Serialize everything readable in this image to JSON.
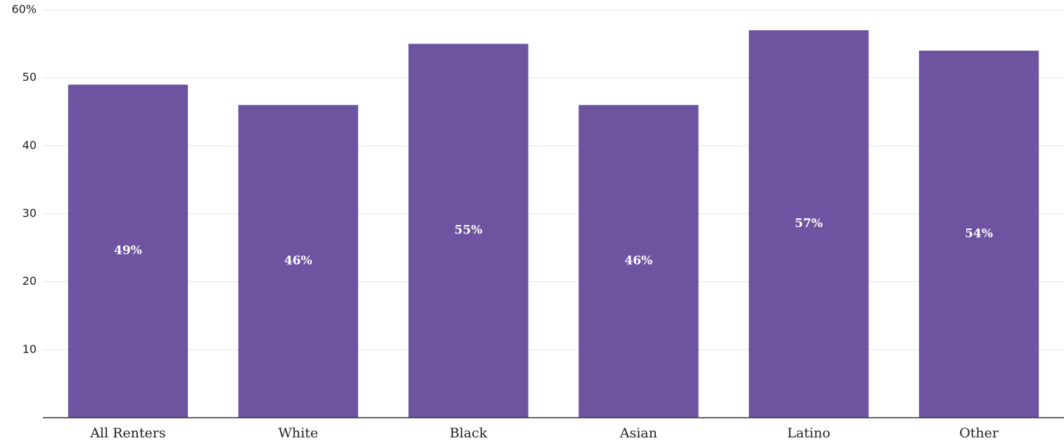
{
  "chart_data": {
    "type": "bar",
    "categories": [
      "All Renters",
      "White",
      "Black",
      "Asian",
      "Latino",
      "Other"
    ],
    "values": [
      49,
      46,
      55,
      46,
      57,
      54
    ],
    "value_labels": [
      "49%",
      "46%",
      "55%",
      "46%",
      "57%",
      "54%"
    ],
    "color": "#6e54a0",
    "ylim": [
      0,
      60
    ],
    "yticks": [
      10,
      20,
      30,
      40,
      50,
      {
        "value": 60,
        "label": "60%"
      }
    ],
    "grid": true
  }
}
